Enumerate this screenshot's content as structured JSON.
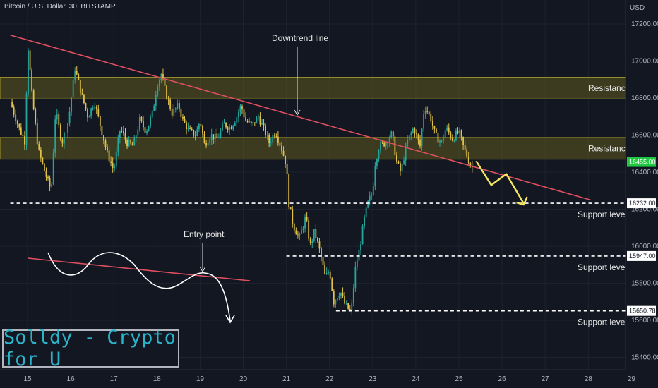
{
  "header": {
    "symbol_title": "Bitcoin / U.S. Dollar, 30, BITSTAMP",
    "currency": "USD"
  },
  "brand": {
    "text": "Solldy - Crypto for U"
  },
  "colors": {
    "background": "#131722",
    "up_candle": "#26a69a",
    "down_candle": "#e0c14a",
    "trendline": "#e04f5f",
    "zone_fill": "#5f5a1e",
    "zone_border": "#a39a2a",
    "price_badge": "#1fc742",
    "projection": "#f5e663"
  },
  "chart_data": {
    "type": "candlestick",
    "title": "Bitcoin / U.S. Dollar, 30, BITSTAMP",
    "ylabel": "USD",
    "ylim": [
      15300,
      17300
    ],
    "xlim": [
      14.6,
      29.3
    ],
    "x_ticks": [
      "15",
      "16",
      "17",
      "18",
      "19",
      "20",
      "21",
      "22",
      "23",
      "24",
      "25",
      "26",
      "27",
      "28",
      "29"
    ],
    "y_ticks": [
      "17200.00",
      "17000.00",
      "16800.00",
      "16600.00",
      "16400.00",
      "16200.00",
      "16000.00",
      "15800.00",
      "15600.00",
      "15400.00"
    ],
    "current_price": "16455.00",
    "price_path": [
      [
        14.6,
        16780
      ],
      [
        14.8,
        16640
      ],
      [
        14.95,
        16560
      ],
      [
        15.0,
        17120
      ],
      [
        15.1,
        16820
      ],
      [
        15.25,
        16520
      ],
      [
        15.4,
        16400
      ],
      [
        15.55,
        16300
      ],
      [
        15.65,
        16730
      ],
      [
        15.8,
        16560
      ],
      [
        15.95,
        16680
      ],
      [
        16.1,
        16960
      ],
      [
        16.25,
        16820
      ],
      [
        16.4,
        16700
      ],
      [
        16.55,
        16780
      ],
      [
        16.7,
        16640
      ],
      [
        16.85,
        16500
      ],
      [
        17.0,
        16410
      ],
      [
        17.15,
        16640
      ],
      [
        17.3,
        16560
      ],
      [
        17.45,
        16540
      ],
      [
        17.6,
        16680
      ],
      [
        17.75,
        16620
      ],
      [
        17.9,
        16720
      ],
      [
        18.0,
        16870
      ],
      [
        18.1,
        16930
      ],
      [
        18.2,
        16830
      ],
      [
        18.35,
        16720
      ],
      [
        18.5,
        16760
      ],
      [
        18.6,
        16680
      ],
      [
        18.75,
        16620
      ],
      [
        18.9,
        16600
      ],
      [
        19.0,
        16680
      ],
      [
        19.1,
        16550
      ],
      [
        19.25,
        16600
      ],
      [
        19.4,
        16580
      ],
      [
        19.55,
        16660
      ],
      [
        19.7,
        16640
      ],
      [
        19.85,
        16700
      ],
      [
        19.95,
        16760
      ],
      [
        20.05,
        16680
      ],
      [
        20.2,
        16650
      ],
      [
        20.35,
        16700
      ],
      [
        20.5,
        16620
      ],
      [
        20.6,
        16560
      ],
      [
        20.75,
        16620
      ],
      [
        20.9,
        16520
      ],
      [
        21.0,
        16440
      ],
      [
        21.05,
        16240
      ],
      [
        21.15,
        16120
      ],
      [
        21.3,
        16040
      ],
      [
        21.45,
        16160
      ],
      [
        21.55,
        16000
      ],
      [
        21.65,
        16080
      ],
      [
        21.8,
        15950
      ],
      [
        21.9,
        15830
      ],
      [
        22.0,
        15870
      ],
      [
        22.1,
        15700
      ],
      [
        22.25,
        15760
      ],
      [
        22.35,
        15690
      ],
      [
        22.5,
        15640
      ],
      [
        22.6,
        15880
      ],
      [
        22.7,
        15990
      ],
      [
        22.8,
        16140
      ],
      [
        22.9,
        16240
      ],
      [
        23.0,
        16290
      ],
      [
        23.05,
        16440
      ],
      [
        23.15,
        16540
      ],
      [
        23.3,
        16560
      ],
      [
        23.45,
        16610
      ],
      [
        23.55,
        16460
      ],
      [
        23.65,
        16400
      ],
      [
        23.8,
        16560
      ],
      [
        23.95,
        16640
      ],
      [
        24.1,
        16540
      ],
      [
        24.2,
        16760
      ],
      [
        24.35,
        16690
      ],
      [
        24.45,
        16600
      ],
      [
        24.6,
        16560
      ],
      [
        24.7,
        16640
      ],
      [
        24.85,
        16580
      ],
      [
        25.0,
        16620
      ],
      [
        25.1,
        16540
      ],
      [
        25.2,
        16480
      ],
      [
        25.3,
        16420
      ],
      [
        25.35,
        16455
      ]
    ],
    "levels": [
      {
        "label": "Support level",
        "price": 16232,
        "x_start": 14.6,
        "value_label": "16232.00"
      },
      {
        "label": "Support level",
        "price": 15947,
        "x_start": 21.0,
        "value_label": "15947.00"
      },
      {
        "label": "Support level",
        "price": 15650.78,
        "x_start": 22.15,
        "value_label": "15650.78"
      }
    ],
    "zones": [
      {
        "label": "Resistance",
        "low": 16795,
        "high": 16912
      },
      {
        "label": "Resistance",
        "low": 16470,
        "high": 16587
      }
    ],
    "downtrend_line": {
      "label": "Downtrend line",
      "from": [
        14.6,
        17140
      ],
      "to": [
        28.05,
        16250
      ]
    },
    "projection": [
      [
        25.4,
        16460
      ],
      [
        25.75,
        16330
      ],
      [
        26.1,
        16390
      ],
      [
        26.5,
        16232
      ]
    ],
    "inset": {
      "label": "Entry point"
    }
  }
}
